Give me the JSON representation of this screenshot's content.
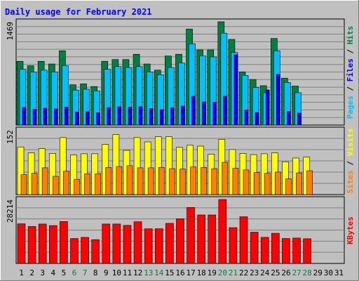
{
  "chart_data": {
    "type": "bar",
    "title": "Daily usage for February 2021",
    "days": [
      "1",
      "2",
      "3",
      "4",
      "5",
      "6",
      "7",
      "8",
      "9",
      "10",
      "11",
      "12",
      "13",
      "14",
      "15",
      "16",
      "17",
      "18",
      "19",
      "20",
      "21",
      "22",
      "23",
      "24",
      "25",
      "26",
      "27",
      "28",
      "29",
      "30",
      "31"
    ],
    "weekend_days": [
      6,
      7,
      13,
      14,
      20,
      21,
      27,
      28
    ],
    "legend": {
      "top": [
        "Pages",
        "Files",
        "Hits"
      ],
      "middle": [
        "Sites",
        "Visits"
      ],
      "bottom": [
        "KBytes"
      ]
    },
    "panels": [
      {
        "name": "hits-files-pages",
        "max_label": "1469",
        "ymax": 1469,
        "series": [
          {
            "name": "Hits",
            "color": "#008040",
            "values": [
              907,
              844,
              907,
              869,
              1057,
              573,
              586,
              548,
              907,
              932,
              932,
              1007,
              869,
              781,
              982,
              1007,
              1365,
              1069,
              1069,
              1469,
              1219,
              757,
              648,
              560,
              1232,
              667,
              555,
              0,
              0,
              0,
              0
            ]
          },
          {
            "name": "Files",
            "color": "#00c0ff",
            "values": [
              794,
              756,
              781,
              756,
              844,
              498,
              510,
              485,
              794,
              832,
              819,
              832,
              756,
              717,
              819,
              882,
              1157,
              982,
              969,
              1307,
              1032,
              705,
              535,
              460,
              1057,
              605,
              460,
              0,
              0,
              0,
              0
            ]
          },
          {
            "name": "Pages",
            "color": "#0000ff",
            "values": [
              250,
              225,
              240,
              230,
              255,
              185,
              190,
              175,
              248,
              260,
              255,
              262,
              235,
              220,
              245,
              270,
              410,
              330,
              325,
              410,
              1000,
              215,
              178,
              500,
              720,
              195,
              170,
              0,
              0,
              0,
              0
            ]
          }
        ]
      },
      {
        "name": "visits-sites",
        "max_label": "152",
        "ymax": 152,
        "series": [
          {
            "name": "Visits",
            "color": "#ffff00",
            "values": [
              112,
              98,
              108,
              97,
              134,
              93,
              96,
              96,
              118,
              141,
              104,
              134,
              124,
              136,
              136,
              111,
              116,
              114,
              95,
              130,
              106,
              97,
              94,
              96,
              98,
              77,
              86,
              88,
              0,
              0,
              0
            ]
          },
          {
            "name": "Sites",
            "color": "#ff8000",
            "values": [
              47,
              50,
              63,
              43,
              55,
              36,
              49,
              49,
              64,
              66,
              68,
              63,
              63,
              64,
              61,
              60,
              65,
              64,
              61,
              76,
              62,
              58,
              52,
              50,
              53,
              37,
              51,
              56,
              0,
              0,
              0
            ]
          }
        ]
      },
      {
        "name": "kbytes",
        "max_label": "28214",
        "ymax": 28214,
        "series": [
          {
            "name": "KBytes",
            "color": "#ff0000",
            "values": [
              17500,
              16300,
              17400,
              16700,
              18500,
              11000,
              11500,
              10500,
              17400,
              17400,
              16800,
              18400,
              15300,
              15300,
              17700,
              19700,
              24700,
              21400,
              21400,
              28214,
              15800,
              20600,
              13800,
              11500,
              13300,
              11000,
              11200,
              10900,
              0,
              0,
              0
            ]
          }
        ]
      }
    ]
  }
}
